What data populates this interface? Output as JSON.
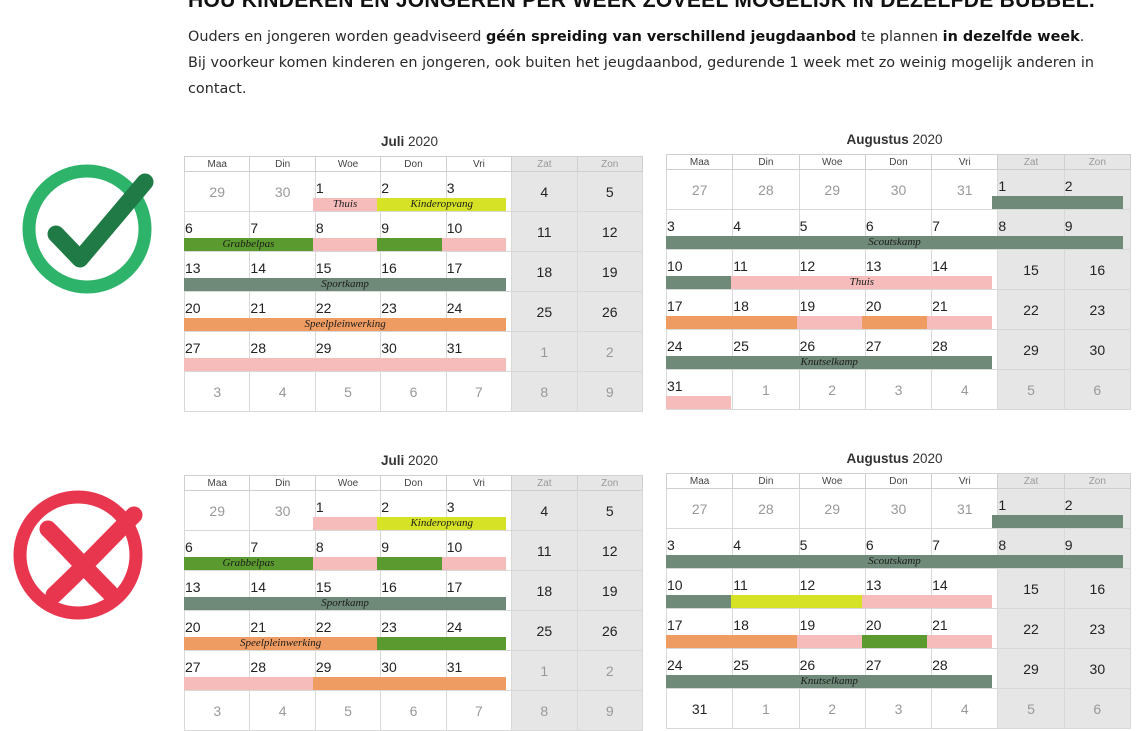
{
  "heading": "HOU KINDEREN EN JONGEREN PER WEEK ZOVEEL MOGELIJK IN DEZELFDE BUBBEL.",
  "intro": {
    "p1_a": "Ouders en jongeren worden geadviseerd ",
    "p1_b": "géén spreiding van verschillend jeugdaanbod",
    "p1_c": " te plannen ",
    "p1_d": "in dezelfde week",
    "p1_e": ".",
    "p2": "Bij voorkeur komen kinderen en jongeren, ook buiten het jeugdaanbod, gedurende 1 week met zo weinig mogelijk anderen in contact."
  },
  "weekdays": [
    "Maa",
    "Din",
    "Woe",
    "Don",
    "Vri",
    "Zat",
    "Zon"
  ],
  "year": "2020",
  "icons": {
    "good": "checkmark-icon",
    "bad": "cross-icon",
    "good_color": "#2eb36a",
    "good_dark": "#1f7a45",
    "bad_color": "#e8364f"
  },
  "colors": {
    "roze": "#f6bcbc",
    "geel": "#d6e225",
    "groen": "#5a9a2e",
    "grijs": "#6f8a78",
    "oranje": "#ee9c62"
  },
  "calendars": [
    {
      "month": "Juli",
      "weeks": [
        [
          "29",
          "30",
          "1",
          "2",
          "3",
          "4",
          "5"
        ],
        [
          "6",
          "7",
          "8",
          "9",
          "10",
          "11",
          "12"
        ],
        [
          "13",
          "14",
          "15",
          "16",
          "17",
          "18",
          "19"
        ],
        [
          "20",
          "21",
          "22",
          "23",
          "24",
          "25",
          "26"
        ],
        [
          "27",
          "28",
          "29",
          "30",
          "31",
          "1",
          "2"
        ],
        [
          "3",
          "4",
          "5",
          "6",
          "7",
          "8",
          "9"
        ]
      ],
      "muted": [
        [
          1,
          1,
          0,
          0,
          0,
          0,
          0
        ],
        [
          0,
          0,
          0,
          0,
          0,
          0,
          0
        ],
        [
          0,
          0,
          0,
          0,
          0,
          0,
          0
        ],
        [
          0,
          0,
          0,
          0,
          0,
          0,
          0
        ],
        [
          0,
          0,
          0,
          0,
          0,
          1,
          1
        ],
        [
          1,
          1,
          1,
          1,
          1,
          1,
          1
        ]
      ],
      "bars": [
        {
          "week": 0,
          "from": 2,
          "to": 2,
          "color": "roze",
          "label": "Thuis"
        },
        {
          "week": 0,
          "from": 3,
          "to": 4,
          "color": "geel",
          "label": "Kinderopvang"
        },
        {
          "week": 1,
          "from": 0,
          "to": 1,
          "color": "groen",
          "label": "Grabbelpas"
        },
        {
          "week": 1,
          "from": 2,
          "to": 2,
          "color": "roze",
          "label": ""
        },
        {
          "week": 1,
          "from": 3,
          "to": 3,
          "color": "groen",
          "label": ""
        },
        {
          "week": 1,
          "from": 4,
          "to": 4,
          "color": "roze",
          "label": ""
        },
        {
          "week": 2,
          "from": 0,
          "to": 4,
          "color": "grijs",
          "label": "Sportkamp"
        },
        {
          "week": 3,
          "from": 0,
          "to": 4,
          "color": "oranje",
          "label": "Speelpleinwerking"
        },
        {
          "week": 4,
          "from": 0,
          "to": 4,
          "color": "roze",
          "label": ""
        }
      ]
    },
    {
      "month": "Augustus",
      "weeks": [
        [
          "27",
          "28",
          "29",
          "30",
          "31",
          "1",
          "2"
        ],
        [
          "3",
          "4",
          "5",
          "6",
          "7",
          "8",
          "9"
        ],
        [
          "10",
          "11",
          "12",
          "13",
          "14",
          "15",
          "16"
        ],
        [
          "17",
          "18",
          "19",
          "20",
          "21",
          "22",
          "23"
        ],
        [
          "24",
          "25",
          "26",
          "27",
          "28",
          "29",
          "30"
        ],
        [
          "31",
          "1",
          "2",
          "3",
          "4",
          "5",
          "6"
        ]
      ],
      "muted": [
        [
          1,
          1,
          1,
          1,
          1,
          0,
          0
        ],
        [
          0,
          0,
          0,
          0,
          0,
          0,
          0
        ],
        [
          0,
          0,
          0,
          0,
          0,
          0,
          0
        ],
        [
          0,
          0,
          0,
          0,
          0,
          0,
          0
        ],
        [
          0,
          0,
          0,
          0,
          0,
          0,
          0
        ],
        [
          0,
          1,
          1,
          1,
          1,
          1,
          1
        ]
      ],
      "bars": [
        {
          "week": 0,
          "from": 5,
          "to": 6,
          "color": "grijs",
          "label": ""
        },
        {
          "week": 1,
          "from": 0,
          "to": 6,
          "color": "grijs",
          "label": "Scoutskamp"
        },
        {
          "week": 2,
          "from": 0,
          "to": 0,
          "color": "grijs",
          "label": ""
        },
        {
          "week": 2,
          "from": 1,
          "to": 4,
          "color": "roze",
          "label": "Thuis"
        },
        {
          "week": 3,
          "from": 0,
          "to": 1,
          "color": "oranje",
          "label": ""
        },
        {
          "week": 3,
          "from": 2,
          "to": 2,
          "color": "roze",
          "label": ""
        },
        {
          "week": 3,
          "from": 3,
          "to": 3,
          "color": "oranje",
          "label": ""
        },
        {
          "week": 3,
          "from": 4,
          "to": 4,
          "color": "roze",
          "label": ""
        },
        {
          "week": 4,
          "from": 0,
          "to": 4,
          "color": "grijs",
          "label": "Knutselkamp"
        },
        {
          "week": 5,
          "from": 0,
          "to": 0,
          "color": "roze",
          "label": ""
        }
      ]
    },
    {
      "month": "Juli",
      "weeks": [
        [
          "29",
          "30",
          "1",
          "2",
          "3",
          "4",
          "5"
        ],
        [
          "6",
          "7",
          "8",
          "9",
          "10",
          "11",
          "12"
        ],
        [
          "13",
          "14",
          "15",
          "16",
          "17",
          "18",
          "19"
        ],
        [
          "20",
          "21",
          "22",
          "23",
          "24",
          "25",
          "26"
        ],
        [
          "27",
          "28",
          "29",
          "30",
          "31",
          "1",
          "2"
        ],
        [
          "3",
          "4",
          "5",
          "6",
          "7",
          "8",
          "9"
        ]
      ],
      "muted": [
        [
          1,
          1,
          0,
          0,
          0,
          0,
          0
        ],
        [
          0,
          0,
          0,
          0,
          0,
          0,
          0
        ],
        [
          0,
          0,
          0,
          0,
          0,
          0,
          0
        ],
        [
          0,
          0,
          0,
          0,
          0,
          0,
          0
        ],
        [
          0,
          0,
          0,
          0,
          0,
          1,
          1
        ],
        [
          1,
          1,
          1,
          1,
          1,
          1,
          1
        ]
      ],
      "bars": [
        {
          "week": 0,
          "from": 2,
          "to": 2,
          "color": "roze",
          "label": ""
        },
        {
          "week": 0,
          "from": 3,
          "to": 4,
          "color": "geel",
          "label": "Kinderopvang"
        },
        {
          "week": 1,
          "from": 0,
          "to": 1,
          "color": "groen",
          "label": "Grabbelpas"
        },
        {
          "week": 1,
          "from": 2,
          "to": 2,
          "color": "roze",
          "label": ""
        },
        {
          "week": 1,
          "from": 3,
          "to": 3,
          "color": "groen",
          "label": ""
        },
        {
          "week": 1,
          "from": 4,
          "to": 4,
          "color": "roze",
          "label": ""
        },
        {
          "week": 2,
          "from": 0,
          "to": 4,
          "color": "grijs",
          "label": "Sportkamp"
        },
        {
          "week": 3,
          "from": 0,
          "to": 2,
          "color": "oranje",
          "label": "Speelpleinwerking"
        },
        {
          "week": 3,
          "from": 3,
          "to": 4,
          "color": "groen",
          "label": ""
        },
        {
          "week": 4,
          "from": 0,
          "to": 1,
          "color": "roze",
          "label": ""
        },
        {
          "week": 4,
          "from": 2,
          "to": 4,
          "color": "oranje",
          "label": ""
        }
      ]
    },
    {
      "month": "Augustus",
      "weeks": [
        [
          "27",
          "28",
          "29",
          "30",
          "31",
          "1",
          "2"
        ],
        [
          "3",
          "4",
          "5",
          "6",
          "7",
          "8",
          "9"
        ],
        [
          "10",
          "11",
          "12",
          "13",
          "14",
          "15",
          "16"
        ],
        [
          "17",
          "18",
          "19",
          "20",
          "21",
          "22",
          "23"
        ],
        [
          "24",
          "25",
          "26",
          "27",
          "28",
          "29",
          "30"
        ],
        [
          "31",
          "1",
          "2",
          "3",
          "4",
          "5",
          "6"
        ]
      ],
      "muted": [
        [
          1,
          1,
          1,
          1,
          1,
          0,
          0
        ],
        [
          0,
          0,
          0,
          0,
          0,
          0,
          0
        ],
        [
          0,
          0,
          0,
          0,
          0,
          0,
          0
        ],
        [
          0,
          0,
          0,
          0,
          0,
          0,
          0
        ],
        [
          0,
          0,
          0,
          0,
          0,
          0,
          0
        ],
        [
          0,
          1,
          1,
          1,
          1,
          1,
          1
        ]
      ],
      "bars": [
        {
          "week": 0,
          "from": 5,
          "to": 6,
          "color": "grijs",
          "label": ""
        },
        {
          "week": 1,
          "from": 0,
          "to": 6,
          "color": "grijs",
          "label": "Scoutskamp"
        },
        {
          "week": 2,
          "from": 0,
          "to": 0,
          "color": "grijs",
          "label": ""
        },
        {
          "week": 2,
          "from": 1,
          "to": 2,
          "color": "geel",
          "label": ""
        },
        {
          "week": 2,
          "from": 3,
          "to": 4,
          "color": "roze",
          "label": ""
        },
        {
          "week": 3,
          "from": 0,
          "to": 1,
          "color": "oranje",
          "label": ""
        },
        {
          "week": 3,
          "from": 2,
          "to": 2,
          "color": "roze",
          "label": ""
        },
        {
          "week": 3,
          "from": 3,
          "to": 3,
          "color": "groen",
          "label": ""
        },
        {
          "week": 3,
          "from": 4,
          "to": 4,
          "color": "roze",
          "label": ""
        },
        {
          "week": 4,
          "from": 0,
          "to": 4,
          "color": "grijs",
          "label": "Knutselkamp"
        }
      ]
    }
  ]
}
